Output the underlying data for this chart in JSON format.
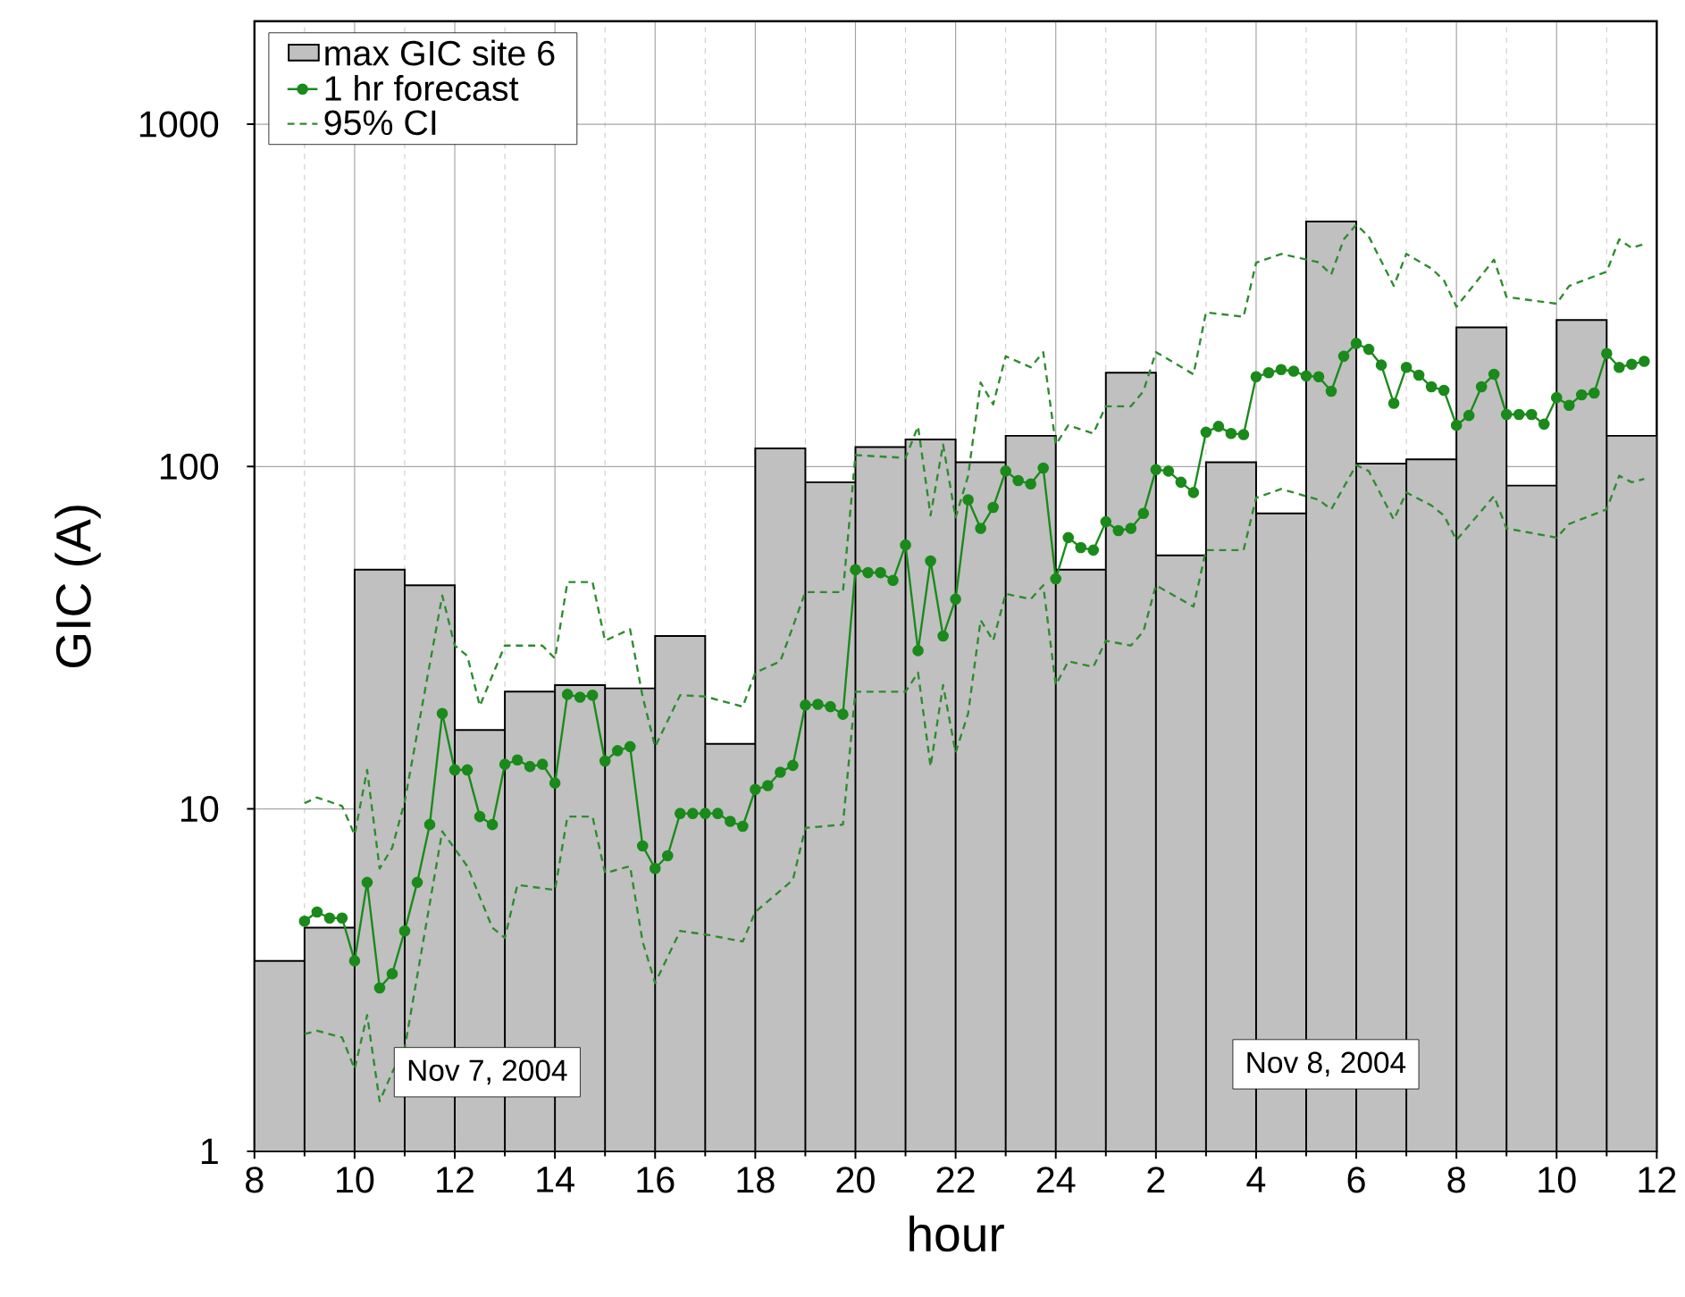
{
  "chart_data": {
    "type": "line",
    "xlabel": "hour",
    "ylabel": "GIC (A)",
    "xlim": [
      "2004-11-07T08:00",
      "2004-11-08T12:00"
    ],
    "ylim": [
      1,
      2000
    ],
    "log": "y",
    "grid": true,
    "legend": "top left",
    "xticks": [
      {
        "value": "2004-11-07T08:00",
        "label": "8"
      },
      {
        "value": "2004-11-07T10:00",
        "label": "10"
      },
      {
        "value": "2004-11-07T12:00",
        "label": "12"
      },
      {
        "value": "2004-11-07T14:00",
        "label": "14"
      },
      {
        "value": "2004-11-07T16:00",
        "label": "16"
      },
      {
        "value": "2004-11-07T18:00",
        "label": "18"
      },
      {
        "value": "2004-11-07T20:00",
        "label": "20"
      },
      {
        "value": "2004-11-07T22:00",
        "label": "22"
      },
      {
        "value": "2004-11-08T00:00",
        "label": "24"
      },
      {
        "value": "2004-11-08T02:00",
        "label": "2"
      },
      {
        "value": "2004-11-08T04:00",
        "label": "4"
      },
      {
        "value": "2004-11-08T06:00",
        "label": "6"
      },
      {
        "value": "2004-11-08T08:00",
        "label": "8"
      },
      {
        "value": "2004-11-08T10:00",
        "label": "10"
      },
      {
        "value": "2004-11-08T12:00",
        "label": "12"
      }
    ],
    "yticks": [
      1,
      10,
      100,
      1000
    ],
    "annotations": [
      "Nov 7, 2004",
      "Nov 8, 2004"
    ],
    "series": [
      {
        "type": "bar",
        "name": "max GIC site 6",
        "color": "#c0c0c0",
        "x": [
          "2004-11-07T08:30",
          "2004-11-07T09:30",
          "2004-11-07T10:30",
          "2004-11-07T11:30",
          "2004-11-07T12:30",
          "2004-11-07T13:30",
          "2004-11-07T14:30",
          "2004-11-07T15:30",
          "2004-11-07T16:30",
          "2004-11-07T17:30",
          "2004-11-07T18:30",
          "2004-11-07T19:30",
          "2004-11-07T20:30",
          "2004-11-07T21:30",
          "2004-11-07T22:30",
          "2004-11-07T23:30",
          "2004-11-08T00:30",
          "2004-11-08T01:30",
          "2004-11-08T02:30",
          "2004-11-08T03:30",
          "2004-11-08T04:30",
          "2004-11-08T05:30",
          "2004-11-08T06:30",
          "2004-11-08T07:30",
          "2004-11-08T08:30",
          "2004-11-08T09:30",
          "2004-11-08T10:30",
          "2004-11-08T11:30"
        ],
        "values": [
          3.6,
          4.5,
          50,
          45,
          17,
          22,
          23,
          22.5,
          32,
          15.5,
          113,
          90,
          114,
          120,
          103,
          123,
          50,
          188,
          55,
          103,
          73,
          520,
          102,
          105,
          255,
          88,
          268,
          123
        ]
      },
      {
        "name": "1 hr forecast",
        "color": "#1a8a1a",
        "marker": "circle",
        "line_style": "solid",
        "x": [
          "2004-11-07T09:00",
          "2004-11-07T09:15",
          "2004-11-07T09:30",
          "2004-11-07T09:45",
          "2004-11-07T10:00",
          "2004-11-07T10:15",
          "2004-11-07T10:30",
          "2004-11-07T10:45",
          "2004-11-07T11:00",
          "2004-11-07T11:15",
          "2004-11-07T11:30",
          "2004-11-07T11:45",
          "2004-11-07T12:00",
          "2004-11-07T12:15",
          "2004-11-07T12:30",
          "2004-11-07T12:45",
          "2004-11-07T13:00",
          "2004-11-07T13:15",
          "2004-11-07T13:30",
          "2004-11-07T13:45",
          "2004-11-07T14:00",
          "2004-11-07T14:15",
          "2004-11-07T14:30",
          "2004-11-07T14:45",
          "2004-11-07T15:00",
          "2004-11-07T15:15",
          "2004-11-07T15:30",
          "2004-11-07T15:45",
          "2004-11-07T16:00",
          "2004-11-07T16:15",
          "2004-11-07T16:30",
          "2004-11-07T16:45",
          "2004-11-07T17:00",
          "2004-11-07T17:15",
          "2004-11-07T17:30",
          "2004-11-07T17:45",
          "2004-11-07T18:00",
          "2004-11-07T18:15",
          "2004-11-07T18:30",
          "2004-11-07T18:45",
          "2004-11-07T19:00",
          "2004-11-07T19:15",
          "2004-11-07T19:30",
          "2004-11-07T19:45",
          "2004-11-07T20:00",
          "2004-11-07T20:15",
          "2004-11-07T20:30",
          "2004-11-07T20:45",
          "2004-11-07T21:00",
          "2004-11-07T21:15",
          "2004-11-07T21:30",
          "2004-11-07T21:45",
          "2004-11-07T22:00",
          "2004-11-07T22:15",
          "2004-11-07T22:30",
          "2004-11-07T22:45",
          "2004-11-07T23:00",
          "2004-11-07T23:15",
          "2004-11-07T23:30",
          "2004-11-07T23:45",
          "2004-11-08T00:00",
          "2004-11-08T00:15",
          "2004-11-08T00:30",
          "2004-11-08T00:45",
          "2004-11-08T01:00",
          "2004-11-08T01:15",
          "2004-11-08T01:30",
          "2004-11-08T01:45",
          "2004-11-08T02:00",
          "2004-11-08T02:15",
          "2004-11-08T02:30",
          "2004-11-08T02:45",
          "2004-11-08T03:00",
          "2004-11-08T03:15",
          "2004-11-08T03:30",
          "2004-11-08T03:45",
          "2004-11-08T04:00",
          "2004-11-08T04:15",
          "2004-11-08T04:30",
          "2004-11-08T04:45",
          "2004-11-08T05:00",
          "2004-11-08T05:15",
          "2004-11-08T05:30",
          "2004-11-08T05:45",
          "2004-11-08T06:00",
          "2004-11-08T06:15",
          "2004-11-08T06:30",
          "2004-11-08T06:45",
          "2004-11-08T07:00",
          "2004-11-08T07:15",
          "2004-11-08T07:30",
          "2004-11-08T07:45",
          "2004-11-08T08:00",
          "2004-11-08T08:15",
          "2004-11-08T08:30",
          "2004-11-08T08:45",
          "2004-11-08T09:00",
          "2004-11-08T09:15",
          "2004-11-08T09:30",
          "2004-11-08T09:45",
          "2004-11-08T10:00",
          "2004-11-08T10:15",
          "2004-11-08T10:30",
          "2004-11-08T10:45",
          "2004-11-08T11:00",
          "2004-11-08T11:15",
          "2004-11-08T11:30",
          "2004-11-08T11:45"
        ],
        "values": [
          4.7,
          5.0,
          4.8,
          4.8,
          3.6,
          6.1,
          3.0,
          3.3,
          4.4,
          6.1,
          9.0,
          19,
          13,
          13,
          9.5,
          9.0,
          13.5,
          13.9,
          13.3,
          13.5,
          11.9,
          21.6,
          21.2,
          21.5,
          13.8,
          14.8,
          15.2,
          7.8,
          6.7,
          7.3,
          9.7,
          9.7,
          9.7,
          9.7,
          9.2,
          8.9,
          11.4,
          11.7,
          12.8,
          13.4,
          20.1,
          20.2,
          19.9,
          18.9,
          50,
          49,
          49,
          46.5,
          59,
          29,
          53,
          32,
          41,
          80,
          66,
          76,
          97,
          91,
          89,
          99,
          47,
          62,
          58,
          57,
          69,
          65,
          66,
          73,
          98,
          97,
          90,
          84,
          126,
          131,
          125,
          124,
          183,
          188,
          192,
          190,
          184,
          183,
          166,
          210,
          229,
          220,
          198,
          153,
          195,
          185,
          171,
          167,
          132,
          141,
          171,
          186,
          142,
          142,
          142,
          133,
          159,
          151,
          162,
          164,
          214,
          195,
          199,
          203
        ]
      },
      {
        "name": "95% CI",
        "color": "#2e8b2e",
        "marker": "none",
        "line_style": "dashed",
        "x": [
          "2004-11-07T09:00",
          "2004-11-07T09:15",
          "2004-11-07T09:45",
          "2004-11-07T10:00",
          "2004-11-07T10:15",
          "2004-11-07T10:30",
          "2004-11-07T10:45",
          "2004-11-07T11:00",
          "2004-11-07T11:45",
          "2004-11-07T12:00",
          "2004-11-07T12:15",
          "2004-11-07T12:30",
          "2004-11-07T13:00",
          "2004-11-07T13:45",
          "2004-11-07T14:00",
          "2004-11-07T14:15",
          "2004-11-07T14:45",
          "2004-11-07T15:00",
          "2004-11-07T15:30",
          "2004-11-07T15:45",
          "2004-11-07T16:00",
          "2004-11-07T16:30",
          "2004-11-07T17:00",
          "2004-11-07T17:45",
          "2004-11-07T18:00",
          "2004-11-07T18:30",
          "2004-11-07T19:00",
          "2004-11-07T19:45",
          "2004-11-07T20:00",
          "2004-11-07T21:00",
          "2004-11-07T21:15",
          "2004-11-07T21:30",
          "2004-11-07T21:45",
          "2004-11-07T22:00",
          "2004-11-07T22:15",
          "2004-11-07T22:30",
          "2004-11-07T22:45",
          "2004-11-07T23:00",
          "2004-11-07T23:30",
          "2004-11-07T23:45",
          "2004-11-08T00:00",
          "2004-11-08T00:15",
          "2004-11-08T00:45",
          "2004-11-08T01:00",
          "2004-11-08T01:30",
          "2004-11-08T01:45",
          "2004-11-08T02:00",
          "2004-11-08T02:45",
          "2004-11-08T03:00",
          "2004-11-08T03:45",
          "2004-11-08T04:00",
          "2004-11-08T04:30",
          "2004-11-08T05:15",
          "2004-11-08T05:30",
          "2004-11-08T05:45",
          "2004-11-08T06:00",
          "2004-11-08T06:15",
          "2004-11-08T06:45",
          "2004-11-08T07:00",
          "2004-11-08T07:30",
          "2004-11-08T07:45",
          "2004-11-08T08:00",
          "2004-11-08T08:45",
          "2004-11-08T09:00",
          "2004-11-08T10:00",
          "2004-11-08T10:15",
          "2004-11-08T11:00",
          "2004-11-08T11:15",
          "2004-11-08T11:30",
          "2004-11-08T11:45"
        ],
        "values": [
          10.4,
          10.8,
          10.2,
          8.4,
          13,
          6.7,
          7.7,
          10.5,
          42,
          30,
          28,
          20,
          30,
          30,
          27.5,
          46,
          46,
          31,
          33.5,
          21.3,
          15.2,
          21.5,
          21.3,
          19.9,
          25,
          27,
          43,
          43,
          108,
          106,
          131,
          72,
          116,
          71,
          94,
          176,
          152,
          210,
          195,
          216,
          116,
          132,
          125,
          150,
          150,
          166,
          216,
          186,
          282,
          274,
          394,
          418,
          395,
          364,
          461,
          509,
          470,
          337,
          418,
          379,
          350,
          293,
          402,
          313,
          299,
          337,
          371,
          461,
          435,
          447
        ]
      },
      {
        "color": "#2e8b2e",
        "marker": "none",
        "line_style": "dashed",
        "x": [
          "2004-11-07T09:00",
          "2004-11-07T09:15",
          "2004-11-07T09:45",
          "2004-11-07T10:00",
          "2004-11-07T10:15",
          "2004-11-07T10:30",
          "2004-11-07T10:45",
          "2004-11-07T11:00",
          "2004-11-07T11:45",
          "2004-11-07T12:15",
          "2004-11-07T12:45",
          "2004-11-07T13:00",
          "2004-11-07T13:15",
          "2004-11-07T14:00",
          "2004-11-07T14:15",
          "2004-11-07T14:45",
          "2004-11-07T15:00",
          "2004-11-07T15:30",
          "2004-11-07T15:45",
          "2004-11-07T16:00",
          "2004-11-07T16:30",
          "2004-11-07T17:00",
          "2004-11-07T17:45",
          "2004-11-07T18:00",
          "2004-11-07T18:45",
          "2004-11-07T19:00",
          "2004-11-07T19:45",
          "2004-11-07T20:00",
          "2004-11-07T21:00",
          "2004-11-07T21:15",
          "2004-11-07T21:30",
          "2004-11-07T21:45",
          "2004-11-07T22:00",
          "2004-11-07T22:15",
          "2004-11-07T22:30",
          "2004-11-07T22:45",
          "2004-11-07T23:00",
          "2004-11-07T23:30",
          "2004-11-07T23:45",
          "2004-11-08T00:00",
          "2004-11-08T00:15",
          "2004-11-08T00:45",
          "2004-11-08T01:00",
          "2004-11-08T01:30",
          "2004-11-08T01:45",
          "2004-11-08T02:00",
          "2004-11-08T02:45",
          "2004-11-08T03:00",
          "2004-11-08T03:45",
          "2004-11-08T04:00",
          "2004-11-08T04:30",
          "2004-11-08T05:15",
          "2004-11-08T05:30",
          "2004-11-08T06:00",
          "2004-11-08T06:15",
          "2004-11-08T06:45",
          "2004-11-08T07:00",
          "2004-11-08T07:30",
          "2004-11-08T07:45",
          "2004-11-08T08:00",
          "2004-11-08T08:45",
          "2004-11-08T09:00",
          "2004-11-08T10:00",
          "2004-11-08T10:15",
          "2004-11-08T11:00",
          "2004-11-08T11:15",
          "2004-11-08T11:30",
          "2004-11-08T11:45"
        ],
        "values": [
          2.2,
          2.25,
          2.15,
          1.74,
          2.5,
          1.4,
          1.7,
          2.0,
          8.6,
          6.8,
          4.5,
          4.2,
          6.0,
          5.8,
          9.5,
          9.5,
          6.5,
          6.8,
          4.1,
          3.1,
          4.4,
          4.3,
          4.1,
          5.0,
          6.2,
          8.8,
          9.0,
          22,
          22,
          25,
          13.3,
          23,
          14.6,
          19,
          35.6,
          31,
          42.5,
          41,
          45,
          23,
          27,
          26,
          31,
          30,
          33,
          45,
          39,
          57,
          57,
          81,
          86,
          80,
          75,
          101,
          97,
          70,
          84,
          77,
          72,
          61,
          82,
          66,
          62,
          68,
          75,
          94,
          90,
          92
        ]
      }
    ]
  }
}
